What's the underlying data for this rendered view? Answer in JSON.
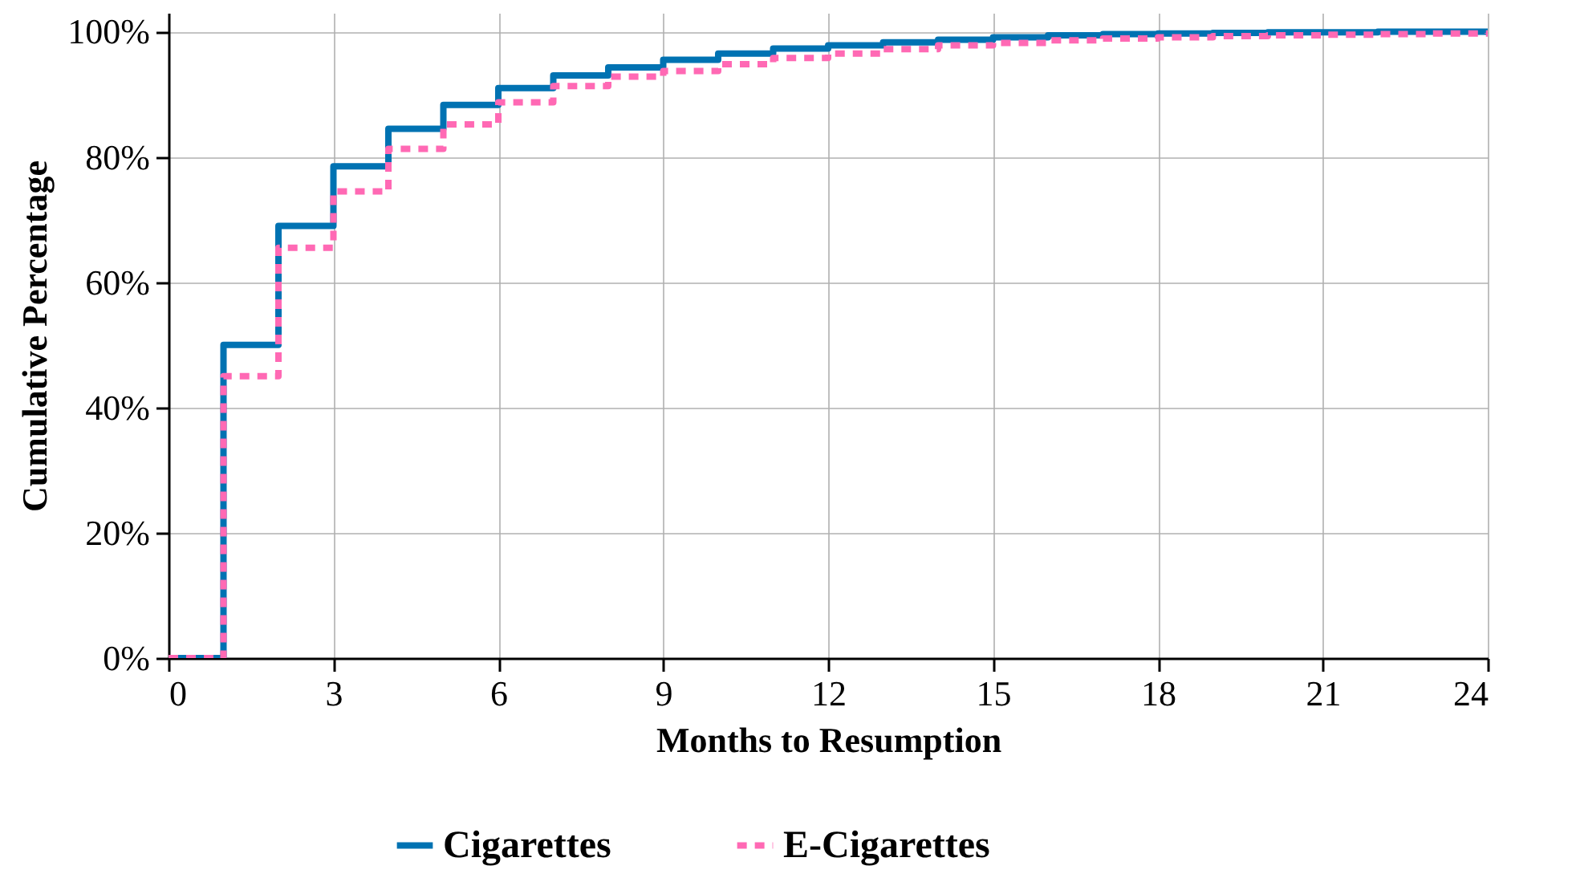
{
  "chart_data": {
    "type": "step",
    "xlabel": "Months to Resumption",
    "ylabel": "Cumulative Percentage",
    "x": [
      0,
      1,
      2,
      3,
      4,
      5,
      6,
      7,
      8,
      9,
      10,
      11,
      12,
      13,
      14,
      15,
      16,
      17,
      18,
      19,
      20,
      21,
      22,
      23,
      24
    ],
    "series": [
      {
        "name": "Cigarettes",
        "color": "#0072b2",
        "line_style": "solid",
        "values": [
          0,
          50,
          69,
          78.5,
          84.5,
          88.3,
          91,
          93,
          94.3,
          95.5,
          96.5,
          97.3,
          97.8,
          98.3,
          98.7,
          99.1,
          99.4,
          99.6,
          99.7,
          99.8,
          99.9,
          99.9,
          100,
          100,
          100
        ]
      },
      {
        "name": "E-Cigarettes",
        "color": "#ff69b4",
        "line_style": "dashed",
        "values": [
          0,
          45,
          65.5,
          74.5,
          81.3,
          85.2,
          88.7,
          91.3,
          92.8,
          93.7,
          94.8,
          95.8,
          96.5,
          97.2,
          97.8,
          98.2,
          98.6,
          98.9,
          99.1,
          99.3,
          99.4,
          99.5,
          99.6,
          99.7,
          99.8
        ]
      }
    ],
    "xlim": [
      0,
      24
    ],
    "xticks": [
      0,
      3,
      6,
      9,
      12,
      15,
      18,
      21,
      24
    ],
    "ylim": [
      0,
      103
    ],
    "yticks": [
      {
        "value": 0,
        "label": "0%"
      },
      {
        "value": 20,
        "label": "20%"
      },
      {
        "value": 40,
        "label": "40%"
      },
      {
        "value": 60,
        "label": "60%"
      },
      {
        "value": 80,
        "label": "80%"
      },
      {
        "value": 100,
        "label": "100%"
      }
    ],
    "grid": true,
    "legend": "bottom"
  }
}
